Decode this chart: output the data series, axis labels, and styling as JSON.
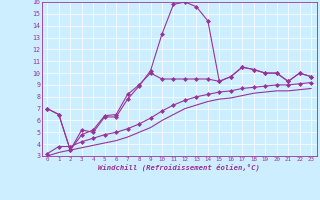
{
  "xlabel": "Windchill (Refroidissement éolien,°C)",
  "bg_color": "#cceeff",
  "line_color": "#993399",
  "xlim": [
    -0.5,
    23.5
  ],
  "ylim": [
    3,
    16
  ],
  "xticks": [
    0,
    1,
    2,
    3,
    4,
    5,
    6,
    7,
    8,
    9,
    10,
    11,
    12,
    13,
    14,
    15,
    16,
    17,
    18,
    19,
    20,
    21,
    22,
    23
  ],
  "yticks": [
    3,
    4,
    5,
    6,
    7,
    8,
    9,
    10,
    11,
    12,
    13,
    14,
    15,
    16
  ],
  "series": [
    [
      7.0,
      6.5,
      3.5,
      5.2,
      5.0,
      6.3,
      6.3,
      7.8,
      8.9,
      10.2,
      13.3,
      15.8,
      16.0,
      15.6,
      14.4,
      9.3,
      9.7,
      10.5,
      10.3,
      10.0,
      10.0,
      9.3,
      10.0,
      9.7
    ],
    [
      7.0,
      6.5,
      3.5,
      4.8,
      5.2,
      6.4,
      6.5,
      8.2,
      9.0,
      10.0,
      9.5,
      9.5,
      9.5,
      9.5,
      9.5,
      9.3,
      9.7,
      10.5,
      10.3,
      10.0,
      10.0,
      9.3,
      10.0,
      9.7
    ],
    [
      3.2,
      3.8,
      3.8,
      4.2,
      4.5,
      4.8,
      5.0,
      5.3,
      5.7,
      6.2,
      6.8,
      7.3,
      7.7,
      8.0,
      8.2,
      8.4,
      8.5,
      8.7,
      8.8,
      8.9,
      9.0,
      9.0,
      9.1,
      9.2
    ],
    [
      3.0,
      3.3,
      3.5,
      3.7,
      3.9,
      4.1,
      4.3,
      4.6,
      5.0,
      5.4,
      6.0,
      6.5,
      7.0,
      7.3,
      7.6,
      7.8,
      7.9,
      8.1,
      8.3,
      8.4,
      8.5,
      8.5,
      8.6,
      8.7
    ]
  ],
  "markers": [
    true,
    true,
    true,
    false
  ]
}
